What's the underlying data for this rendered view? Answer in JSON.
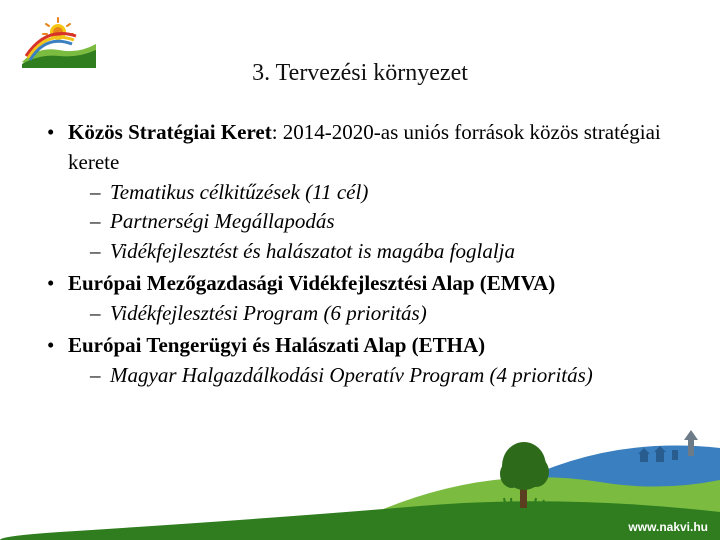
{
  "title": "3. Tervezési környezet",
  "bullets": [
    {
      "lead_bold": "Közös Stratégiai Keret",
      "lead_rest": ": 2014-2020-as uniós források közös stratégiai kerete",
      "subs": [
        "Tematikus célkitűzések (11 cél)",
        "Partnerségi Megállapodás",
        "Vidékfejlesztést és halászatot is magába foglalja"
      ],
      "subs_italic": true
    },
    {
      "lead_bold": "Európai Mezőgazdasági Vidékfejlesztési Alap (EMVA)",
      "lead_rest": "",
      "subs": [
        "Vidékfejlesztési Program (6 prioritás)"
      ],
      "subs_italic": true
    },
    {
      "lead_bold": "Európai Tengerügyi és Halászati Alap (ETHA)",
      "lead_rest": "",
      "subs": [
        "Magyar Halgazdálkodási Operatív Program (4 prioritás)"
      ],
      "subs_italic": true
    }
  ],
  "footer_url": "www.nakvi.hu",
  "colors": {
    "hill_green_light": "#7bbb3f",
    "hill_green_dark": "#2f7d1f",
    "sky_blue": "#3a7fbf",
    "tree_green": "#2d6b1a",
    "trunk": "#5a3e1f",
    "monument": "#6d7b88",
    "sun_yellow": "#f6c614",
    "sun_orange": "#e8841a",
    "rainbow_red": "#d7322a",
    "rainbow_yellow": "#f1c21a",
    "google_g": "#4285F4"
  }
}
